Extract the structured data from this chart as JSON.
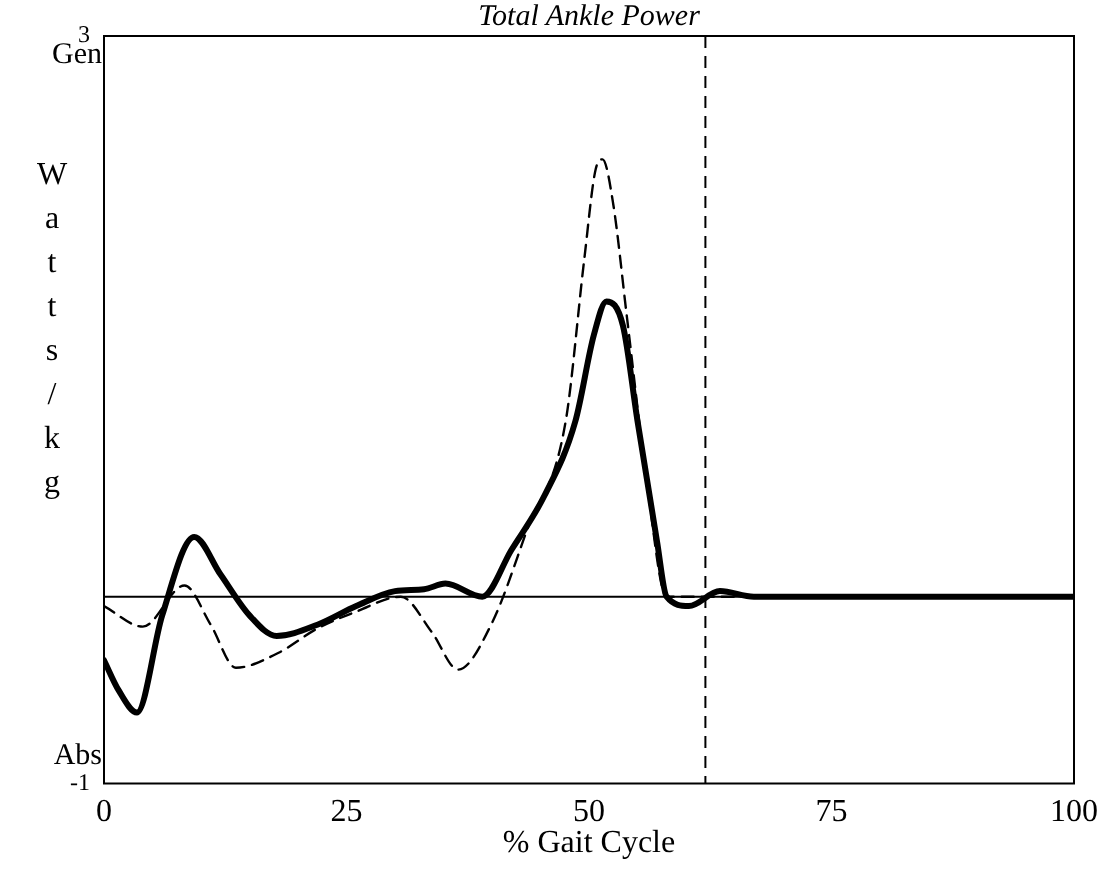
{
  "chart_data": {
    "type": "line",
    "title": "Total Ankle Power",
    "xlabel": "% Gait Cycle",
    "ylabel": "Watts/kg",
    "xlim": [
      0,
      100
    ],
    "xticks": [
      0,
      25,
      50,
      75,
      100
    ],
    "ylim": [
      -1,
      3
    ],
    "yticks": [
      3,
      -1
    ],
    "annotations": [
      "Gen",
      "Abs"
    ],
    "grid": false,
    "legend": false,
    "marker": "none",
    "ref_lines": [
      {
        "axis": "y",
        "value": 0,
        "color": "#000000",
        "line_style": "solid"
      },
      {
        "axis": "x",
        "value": 62,
        "color": "#000000",
        "line_style": "dashed"
      }
    ],
    "series": [
      {
        "color": "#000000",
        "line_style": "solid",
        "x": [
          0,
          1.5,
          3.4,
          6,
          9.3,
          12,
          15,
          17.8,
          22,
          26,
          30,
          33,
          35.2,
          39,
          42,
          45.4,
          48.6,
          50.5,
          51.8,
          53.5,
          55,
          57,
          58,
          60.3,
          63.5,
          67,
          75,
          100
        ],
        "values": [
          -0.34,
          -0.5,
          -0.62,
          -0.1,
          0.32,
          0.12,
          -0.1,
          -0.21,
          -0.15,
          -0.05,
          0.03,
          0.04,
          0.07,
          0,
          0.25,
          0.54,
          0.94,
          1.4,
          1.58,
          1.45,
          0.94,
          0.3,
          0,
          -0.05,
          0.03,
          0,
          0,
          0
        ]
      },
      {
        "color": "#000000",
        "line_style": "dashed",
        "x": [
          0,
          4,
          8.3,
          11,
          13.6,
          18,
          22,
          26,
          30.6,
          33.8,
          36.5,
          40,
          43.7,
          47.6,
          49.5,
          50.7,
          51.4,
          52.5,
          53.9,
          56,
          58,
          62,
          100
        ],
        "values": [
          -0.05,
          -0.16,
          0.06,
          -0.15,
          -0.38,
          -0.3,
          -0.17,
          -0.08,
          0,
          -0.19,
          -0.39,
          -0.14,
          0.37,
          0.94,
          1.8,
          2.29,
          2.34,
          2.1,
          1.5,
          0.6,
          0,
          0,
          0
        ]
      }
    ]
  }
}
